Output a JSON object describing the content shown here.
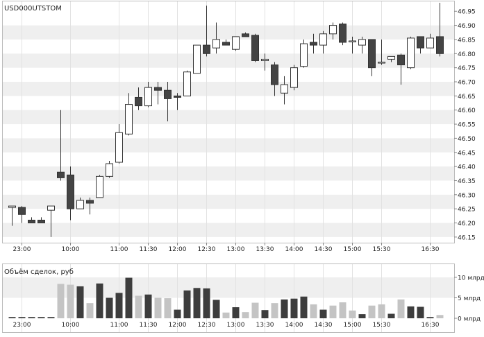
{
  "chart_data": {
    "type": "candlestick",
    "title": "USD000UTSTOM",
    "price_axis": {
      "ticks": [
        46.15,
        46.2,
        46.25,
        46.3,
        46.35,
        46.4,
        46.45,
        46.5,
        46.55,
        46.6,
        46.65,
        46.7,
        46.75,
        46.8,
        46.85,
        46.9,
        46.95
      ],
      "tick_labels": [
        "46.15",
        "46.20",
        "46.25",
        "46.30",
        "46.35",
        "46.40",
        "46.45",
        "46.50",
        "46.55",
        "46.60",
        "46.65",
        "46.70",
        "46.75",
        "46.80",
        "46.85",
        "46.90",
        "46.95"
      ],
      "range": [
        46.13,
        46.985
      ],
      "position": "right"
    },
    "time_axis": {
      "tick_labels": [
        "23:00",
        "10:00",
        "11:00",
        "11:30",
        "12:00",
        "12:30",
        "13:00",
        "13:30",
        "14:00",
        "14:30",
        "15:00",
        "15:30",
        "16:30"
      ],
      "tick_index": [
        1,
        6,
        11,
        14,
        17,
        20,
        23,
        26,
        29,
        32,
        35,
        38,
        43
      ]
    },
    "candles": [
      {
        "o": 46.255,
        "h": 46.26,
        "l": 46.19,
        "c": 46.26
      },
      {
        "o": 46.255,
        "h": 46.26,
        "l": 46.2,
        "c": 46.23
      },
      {
        "o": 46.21,
        "h": 46.22,
        "l": 46.2,
        "c": 46.2
      },
      {
        "o": 46.21,
        "h": 46.22,
        "l": 46.2,
        "c": 46.2
      },
      {
        "o": 46.245,
        "h": 46.26,
        "l": 46.15,
        "c": 46.26
      },
      {
        "o": 46.38,
        "h": 46.6,
        "l": 46.35,
        "c": 46.36
      },
      {
        "o": 46.37,
        "h": 46.4,
        "l": 46.21,
        "c": 46.25
      },
      {
        "o": 46.25,
        "h": 46.29,
        "l": 46.25,
        "c": 46.28
      },
      {
        "o": 46.28,
        "h": 46.29,
        "l": 46.23,
        "c": 46.27
      },
      {
        "o": 46.29,
        "h": 46.37,
        "l": 46.29,
        "c": 46.365
      },
      {
        "o": 46.365,
        "h": 46.42,
        "l": 46.36,
        "c": 46.41
      },
      {
        "o": 46.415,
        "h": 46.55,
        "l": 46.41,
        "c": 46.52
      },
      {
        "o": 46.515,
        "h": 46.66,
        "l": 46.51,
        "c": 46.62
      },
      {
        "o": 46.645,
        "h": 46.68,
        "l": 46.6,
        "c": 46.615
      },
      {
        "o": 46.615,
        "h": 46.7,
        "l": 46.61,
        "c": 46.68
      },
      {
        "o": 46.68,
        "h": 46.7,
        "l": 46.62,
        "c": 46.67
      },
      {
        "o": 46.67,
        "h": 46.7,
        "l": 46.56,
        "c": 46.64
      },
      {
        "o": 46.65,
        "h": 46.66,
        "l": 46.6,
        "c": 46.645
      },
      {
        "o": 46.65,
        "h": 46.74,
        "l": 46.65,
        "c": 46.735
      },
      {
        "o": 46.73,
        "h": 46.83,
        "l": 46.73,
        "c": 46.83
      },
      {
        "o": 46.83,
        "h": 46.97,
        "l": 46.79,
        "c": 46.8
      },
      {
        "o": 46.82,
        "h": 46.91,
        "l": 46.8,
        "c": 46.85
      },
      {
        "o": 46.84,
        "h": 46.85,
        "l": 46.83,
        "c": 46.83
      },
      {
        "o": 46.815,
        "h": 46.86,
        "l": 46.81,
        "c": 46.86
      },
      {
        "o": 46.87,
        "h": 46.875,
        "l": 46.86,
        "c": 46.86
      },
      {
        "o": 46.865,
        "h": 46.87,
        "l": 46.77,
        "c": 46.775
      },
      {
        "o": 46.775,
        "h": 46.8,
        "l": 46.74,
        "c": 46.78
      },
      {
        "o": 46.76,
        "h": 46.77,
        "l": 46.65,
        "c": 46.69
      },
      {
        "o": 46.66,
        "h": 46.72,
        "l": 46.62,
        "c": 46.69
      },
      {
        "o": 46.68,
        "h": 46.76,
        "l": 46.67,
        "c": 46.75
      },
      {
        "o": 46.755,
        "h": 46.85,
        "l": 46.75,
        "c": 46.835
      },
      {
        "o": 46.84,
        "h": 46.87,
        "l": 46.8,
        "c": 46.83
      },
      {
        "o": 46.83,
        "h": 46.88,
        "l": 46.8,
        "c": 46.87
      },
      {
        "o": 46.87,
        "h": 46.91,
        "l": 46.85,
        "c": 46.9
      },
      {
        "o": 46.905,
        "h": 46.91,
        "l": 46.83,
        "c": 46.84
      },
      {
        "o": 46.845,
        "h": 46.86,
        "l": 46.8,
        "c": 46.845
      },
      {
        "o": 46.83,
        "h": 46.86,
        "l": 46.8,
        "c": 46.85
      },
      {
        "o": 46.85,
        "h": 46.85,
        "l": 46.72,
        "c": 46.75
      },
      {
        "o": 46.77,
        "h": 46.85,
        "l": 46.76,
        "c": 46.77
      },
      {
        "o": 46.78,
        "h": 46.79,
        "l": 46.77,
        "c": 46.79
      },
      {
        "o": 46.795,
        "h": 46.8,
        "l": 46.69,
        "c": 46.76
      },
      {
        "o": 46.75,
        "h": 46.86,
        "l": 46.745,
        "c": 46.855
      },
      {
        "o": 46.86,
        "h": 46.86,
        "l": 46.8,
        "c": 46.82
      },
      {
        "o": 46.82,
        "h": 46.87,
        "l": 46.82,
        "c": 46.855
      },
      {
        "o": 46.86,
        "h": 46.98,
        "l": 46.79,
        "c": 46.8
      }
    ],
    "volume_panel": {
      "title": "Объём сделок, руб",
      "unit": "млрд",
      "ticks": [
        0,
        5,
        10
      ],
      "tick_labels": [
        "0 млрд",
        "5 млрд",
        "10 млрд"
      ],
      "range": [
        0,
        10.5
      ],
      "values": [
        0.3,
        0.3,
        0.3,
        0.3,
        0.3,
        8.4,
        8.2,
        7.8,
        3.7,
        8.5,
        5,
        6.2,
        9.9,
        5.5,
        5.8,
        5,
        4.9,
        2.1,
        6.8,
        7.4,
        7.3,
        4.5,
        1.4,
        2.7,
        1.5,
        3.8,
        2,
        3.7,
        4.6,
        4.8,
        5.3,
        3.4,
        2.1,
        3.1,
        3.9,
        1.9,
        1,
        3.1,
        3.4,
        1.1,
        4.6,
        2.9,
        2.8,
        0.3,
        0.8
      ],
      "shades": [
        "dark",
        "dark",
        "dark",
        "dark",
        "dark",
        "light",
        "light",
        "dark",
        "light",
        "dark",
        "dark",
        "dark",
        "dark",
        "light",
        "dark",
        "light",
        "light",
        "dark",
        "dark",
        "dark",
        "dark",
        "dark",
        "light",
        "dark",
        "light",
        "light",
        "dark",
        "light",
        "dark",
        "dark",
        "dark",
        "light",
        "dark",
        "light",
        "light",
        "light",
        "dark",
        "light",
        "light",
        "dark",
        "light",
        "dark",
        "dark",
        "dark",
        "light"
      ]
    },
    "colors": {
      "bull_fill": "#ffffff",
      "bear_fill": "#444444",
      "outline": "#333333",
      "band": "#efefef",
      "volume_dark": "#3d3d3d",
      "volume_light": "#c4c4c4",
      "axis": "#888888"
    }
  }
}
